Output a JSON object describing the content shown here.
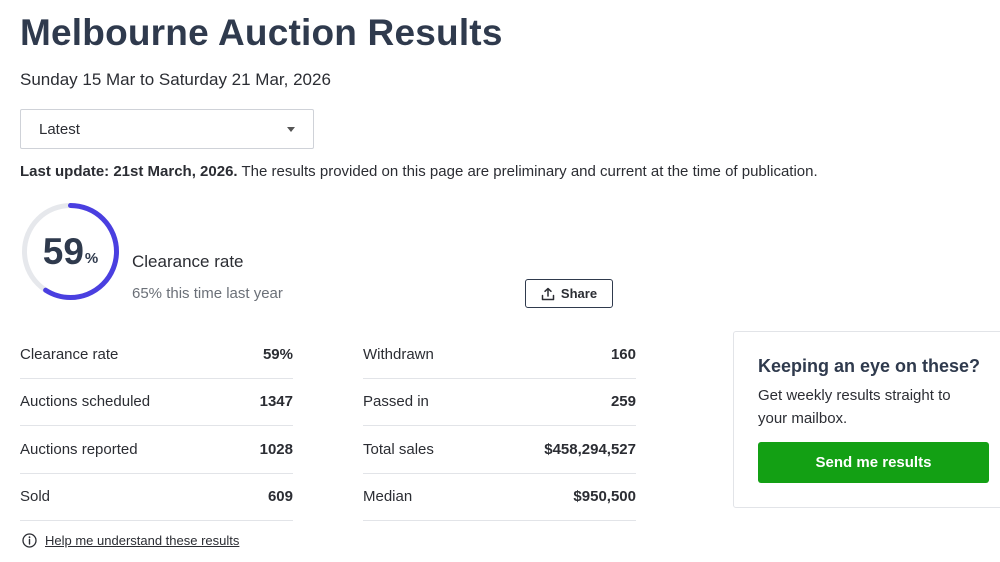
{
  "header": {
    "title": "Melbourne Auction Results",
    "date_range": "Sunday 15 Mar to Saturday 21 Mar, 2026"
  },
  "filter": {
    "selected": "Latest"
  },
  "update": {
    "label": "Last update: 21st March, 2026.",
    "note": " The results provided on this page are preliminary and current at the time of publication."
  },
  "clearance": {
    "value": "59",
    "unit": "%",
    "fraction": 0.59,
    "label": "Clearance rate",
    "last_year": "65% this time last year"
  },
  "share_label": "Share",
  "stats": {
    "left": [
      {
        "label": "Clearance rate",
        "value": "59%"
      },
      {
        "label": "Auctions scheduled",
        "value": "1347"
      },
      {
        "label": "Auctions reported",
        "value": "1028"
      },
      {
        "label": "Sold",
        "value": "609"
      }
    ],
    "right": [
      {
        "label": "Withdrawn",
        "value": "160"
      },
      {
        "label": "Passed in",
        "value": "259"
      },
      {
        "label": "Total sales",
        "value": "$458,294,527"
      },
      {
        "label": "Median",
        "value": "$950,500"
      }
    ]
  },
  "help_link": "Help me understand these results",
  "card": {
    "title": "Keeping an eye on these?",
    "body": "Get weekly results straight to your mailbox.",
    "button": "Send me results"
  },
  "colors": {
    "gauge_fill": "#4a3fe0",
    "gauge_track": "#e6e8ec",
    "button_green": "#13a014"
  },
  "icons": {
    "dropdown": "chevron-down-icon",
    "share": "share-upload-icon",
    "help": "info-circle-icon"
  }
}
